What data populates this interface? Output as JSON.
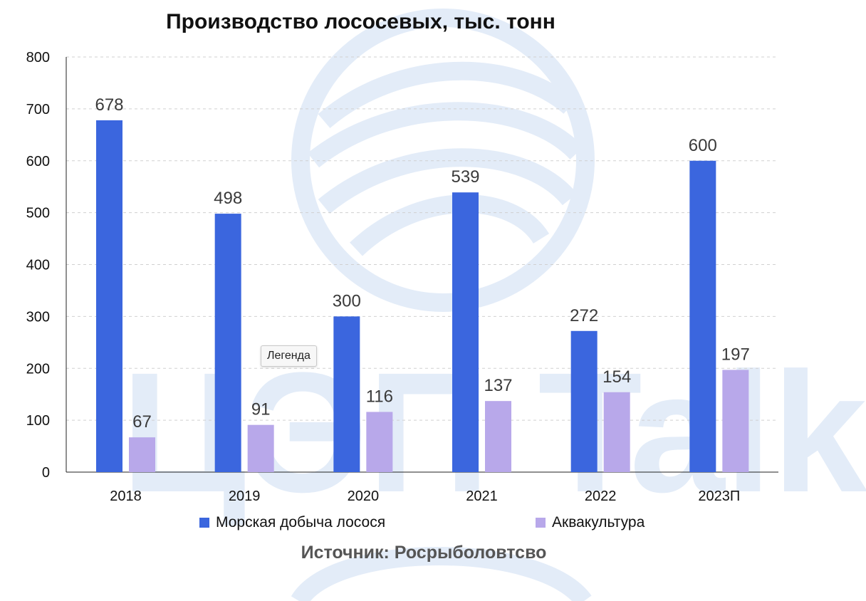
{
  "title": "Производство лососевых, тыс. тонн",
  "source": "Источник: Росрыболовтсво",
  "tooltip": "Легенда",
  "watermark_text": "ЦЭП Talks",
  "colors": {
    "series_marine": "#3B66DE",
    "series_aqua": "#B8A8EA",
    "watermark": "#E3ECF8",
    "grid": "#D0D0D0"
  },
  "chart_data": {
    "type": "bar",
    "title": "Производство лососевых, тыс. тонн",
    "categories": [
      "2018",
      "2019",
      "2020",
      "2021",
      "2022",
      "2023П"
    ],
    "series": [
      {
        "name": "Морская добыча лосося",
        "values": [
          678,
          498,
          300,
          539,
          272,
          600
        ]
      },
      {
        "name": "Аквакультура",
        "values": [
          67,
          91,
          116,
          137,
          154,
          197
        ]
      }
    ],
    "ylim": [
      0,
      800
    ],
    "yticks": [
      0,
      100,
      200,
      300,
      400,
      500,
      600,
      700,
      800
    ],
    "grid": true,
    "legend_position": "bottom",
    "xlabel": "",
    "ylabel": ""
  }
}
